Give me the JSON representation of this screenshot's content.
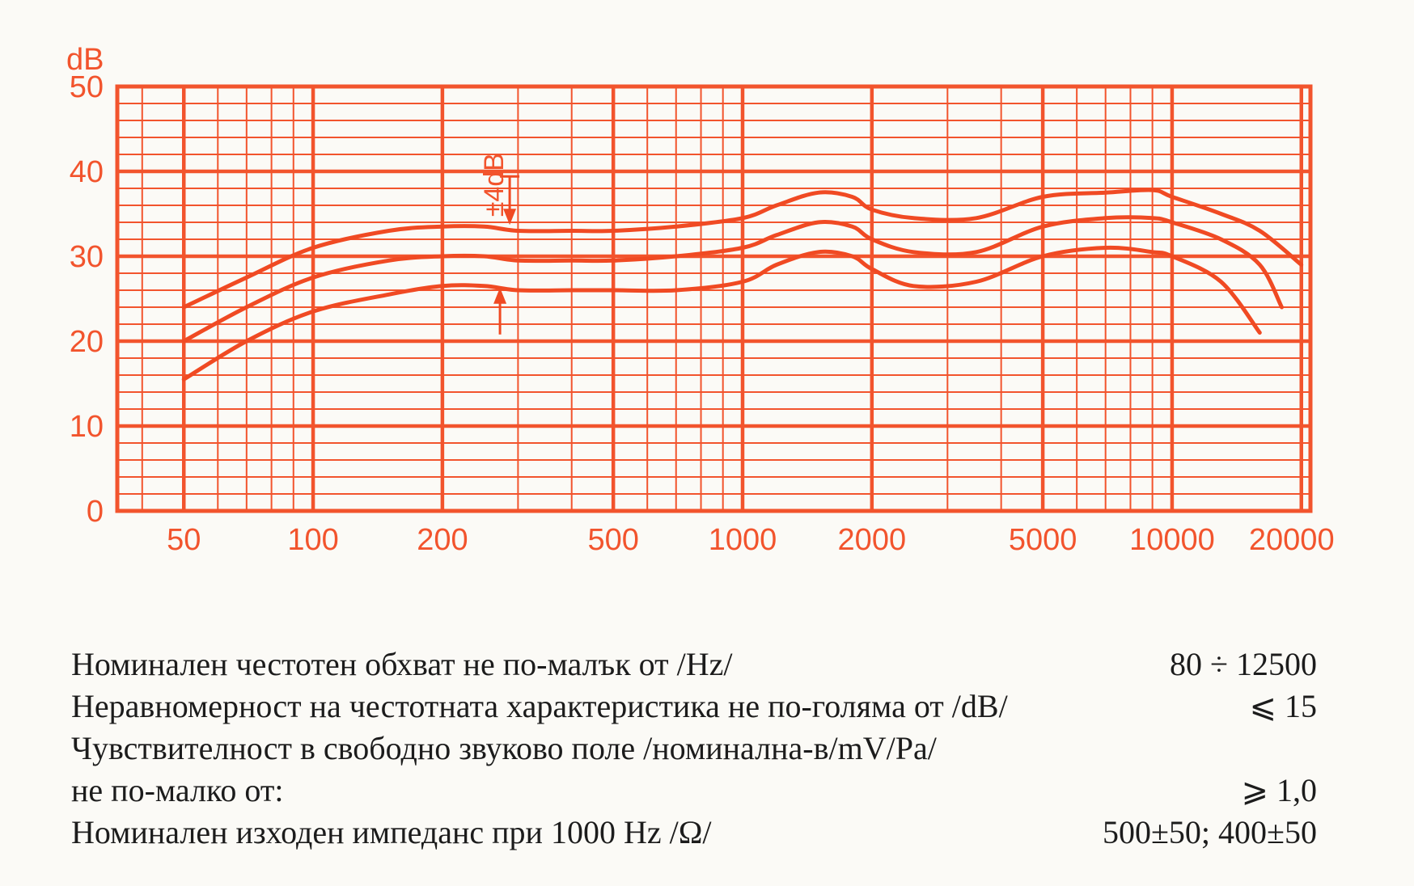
{
  "chart_data": {
    "type": "line",
    "ylabel": "dB",
    "xscale": "log",
    "xlim": [
      35,
      21000
    ],
    "ylim": [
      0,
      50
    ],
    "grid": true,
    "xticks": [
      50,
      100,
      200,
      500,
      1000,
      2000,
      5000,
      10000,
      20000
    ],
    "xtick_labels": [
      "50",
      "100",
      "200",
      "500",
      "1000",
      "2000",
      "5000",
      "10000",
      "20000"
    ],
    "yticks": [
      0,
      10,
      20,
      30,
      40,
      50
    ],
    "ytick_labels": [
      "0",
      "10",
      "20",
      "30",
      "40",
      "50"
    ],
    "colors": {
      "grid": "#f2542d",
      "curve": "#f04a23",
      "text": "#f2542d"
    },
    "annotation": {
      "text": "±4dB",
      "x": 270
    },
    "series": [
      {
        "x": [
          50,
          70,
          100,
          150,
          200,
          250,
          300,
          400,
          500,
          700,
          1000,
          1200,
          1500,
          1800,
          2000,
          2500,
          3500,
          5000,
          7000,
          9000,
          10000,
          13000,
          16000,
          20000
        ],
        "values": [
          24,
          27.5,
          31,
          33,
          33.5,
          33.5,
          33,
          33,
          33,
          33.5,
          34.5,
          36,
          37.5,
          37,
          35.5,
          34.5,
          34.5,
          37,
          37.5,
          37.8,
          37,
          35,
          33,
          29
        ]
      },
      {
        "x": [
          50,
          70,
          100,
          150,
          200,
          250,
          300,
          400,
          500,
          700,
          1000,
          1200,
          1500,
          1800,
          2000,
          2500,
          3500,
          5000,
          7000,
          9000,
          10000,
          13000,
          16000,
          18000
        ],
        "values": [
          20,
          24,
          27.5,
          29.5,
          30,
          30,
          29.5,
          29.5,
          29.5,
          30,
          31,
          32.5,
          34,
          33.5,
          32,
          30.5,
          30.5,
          33.5,
          34.5,
          34.5,
          34,
          32,
          29,
          24
        ]
      },
      {
        "x": [
          50,
          70,
          100,
          150,
          200,
          250,
          300,
          400,
          500,
          700,
          1000,
          1200,
          1500,
          1800,
          2000,
          2500,
          3500,
          5000,
          7000,
          9000,
          10000,
          13000,
          16000
        ],
        "values": [
          15.5,
          20,
          23.5,
          25.5,
          26.5,
          26.5,
          26,
          26,
          26,
          26,
          27,
          29,
          30.5,
          30,
          28.5,
          26.5,
          27,
          30,
          31,
          30.5,
          30,
          27,
          21
        ]
      }
    ]
  },
  "specs": [
    {
      "label": "Номинален честотен обхват не по-малък от /Hz/",
      "value": "80 ÷ 12500"
    },
    {
      "label": "Неравномерност на честотната характеристика не по-голяма от /dB/",
      "value": "⩽ 15"
    },
    {
      "label": "Чувствителност в свободно звуково поле /номинална-в/mV/Pa/",
      "value": ""
    },
    {
      "label": "не по-малко от:",
      "value": "⩾ 1,0"
    },
    {
      "label": "Номинален изходен импеданс при 1000 Hz /Ω/",
      "value": "500±50; 400±50"
    },
    {
      "label": "",
      "value": ""
    }
  ]
}
